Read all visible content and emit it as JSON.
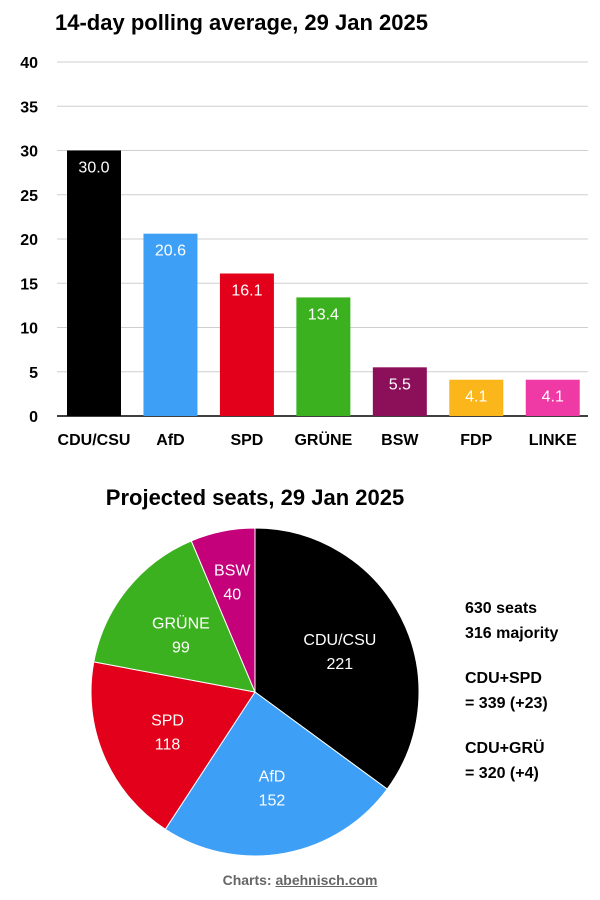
{
  "chart_data": [
    {
      "type": "bar",
      "title": "14-day polling average, 29 Jan 2025",
      "categories": [
        "CDU/CSU",
        "AfD",
        "SPD",
        "GRÜNE",
        "BSW",
        "FDP",
        "LINKE"
      ],
      "values": [
        30.0,
        20.6,
        16.1,
        13.4,
        5.5,
        4.1,
        4.1
      ],
      "value_labels": [
        "30.0",
        "20.6",
        "16.1",
        "13.4",
        "5.5",
        "4.1",
        "4.1"
      ],
      "colors": [
        "#000000",
        "#3d9ff6",
        "#e2001a",
        "#3cb11f",
        "#8c0f5a",
        "#fbb61b",
        "#ef3aa5"
      ],
      "ylim": [
        0,
        40
      ],
      "yticks": [
        0,
        5,
        10,
        15,
        20,
        25,
        30,
        35,
        40
      ],
      "grid": true
    },
    {
      "type": "pie",
      "title": "Projected seats, 29 Jan 2025",
      "labels": [
        "CDU/CSU",
        "AfD",
        "SPD",
        "GRÜNE",
        "BSW"
      ],
      "values": [
        221,
        152,
        118,
        99,
        40
      ],
      "colors": [
        "#000000",
        "#3d9ff6",
        "#e2001a",
        "#3cb11f",
        "#c4007a"
      ],
      "annotations": [
        "630 seats",
        "316 majority",
        "CDU+SPD",
        "= 339 (+23)",
        "CDU+GRÜ",
        "= 320 (+4)"
      ]
    }
  ],
  "credit": {
    "prefix": "Charts: ",
    "link": "abehnisch.com"
  }
}
